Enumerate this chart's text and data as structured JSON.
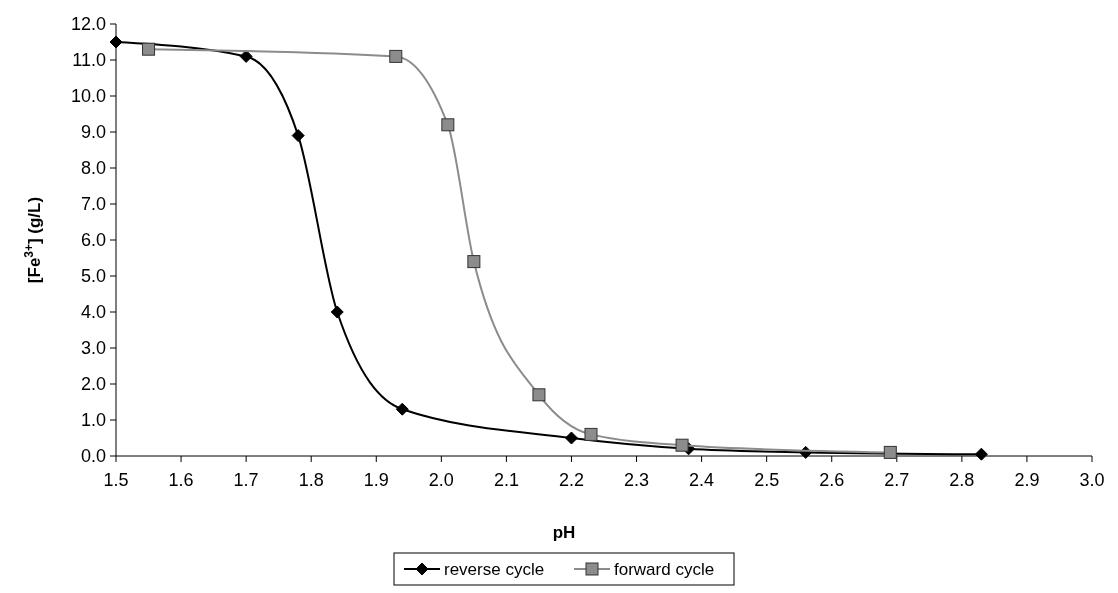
{
  "chart_data": {
    "type": "line",
    "xlabel": "pH",
    "ylabel": "[Fe$^{3+}$] (g/L)",
    "xlim": [
      1.5,
      3.0
    ],
    "xticks": [
      1.5,
      1.6,
      1.7,
      1.8,
      1.9,
      {
        "value": 2,
        "label": "2.0"
      },
      2.1,
      2.2,
      2.3,
      2.4,
      2.5,
      2.6,
      2.7,
      2.8,
      2.9,
      {
        "value": 3,
        "label": "3.0"
      }
    ],
    "ylim": [
      0,
      12
    ],
    "yticks": [
      {
        "value": 0,
        "label": "0.0"
      },
      {
        "value": 1,
        "label": "1.0"
      },
      {
        "value": 2,
        "label": "2.0"
      },
      {
        "value": 3,
        "label": "3.0"
      },
      {
        "value": 4,
        "label": "4.0"
      },
      {
        "value": 5,
        "label": "5.0"
      },
      {
        "value": 6,
        "label": "6.0"
      },
      {
        "value": 7,
        "label": "7.0"
      },
      {
        "value": 8,
        "label": "8.0"
      },
      {
        "value": 9,
        "label": "9.0"
      },
      {
        "value": 10,
        "label": "10.0"
      },
      {
        "value": 11,
        "label": "11.0"
      },
      {
        "value": 12,
        "label": "12.0"
      }
    ],
    "grid": false,
    "legend": "bottom",
    "line_style": "solid",
    "series": [
      {
        "name": "reverse cycle",
        "color": "#000000",
        "marker": "diamond",
        "x": [
          1.5,
          1.7,
          1.78,
          1.84,
          1.94,
          2.2,
          2.38,
          2.56,
          2.83
        ],
        "values": [
          11.5,
          11.1,
          8.9,
          4.0,
          1.3,
          0.5,
          0.2,
          0.1,
          0.05
        ]
      },
      {
        "name": "forward cycle",
        "color": "#8c8c8c",
        "marker": "square",
        "x": [
          1.55,
          1.93,
          2.01,
          2.05,
          2.15,
          2.23,
          2.37,
          2.69
        ],
        "values": [
          11.3,
          11.1,
          9.2,
          5.4,
          1.7,
          0.6,
          0.3,
          0.1
        ]
      }
    ]
  }
}
